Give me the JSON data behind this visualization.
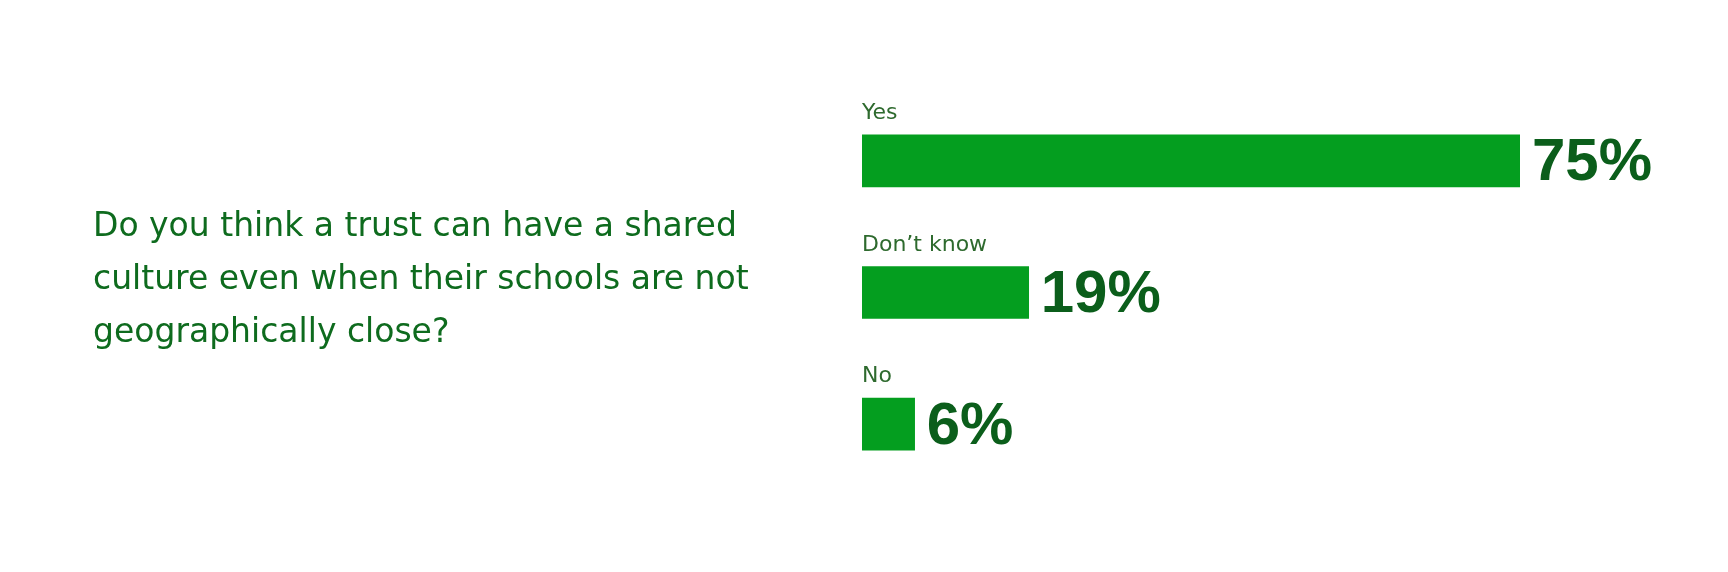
{
  "chart_data": {
    "type": "bar",
    "orientation": "horizontal",
    "title": "Do you think a trust can have a shared culture even when their schools are not geographically close?",
    "categories": [
      "Yes",
      "Don’t know",
      "No"
    ],
    "values": [
      75,
      19,
      6
    ],
    "color": "#049e1f",
    "value_labels": [
      "75%",
      "19%",
      "6%"
    ]
  }
}
